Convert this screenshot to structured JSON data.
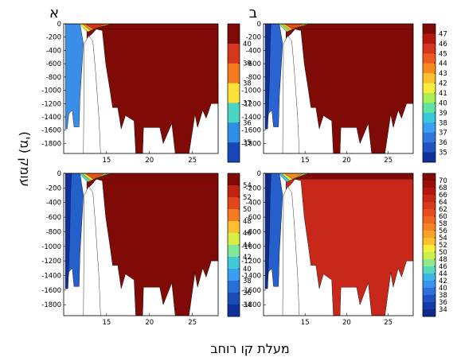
{
  "figure": {
    "xlabel": "מעלת קו רוחב",
    "ylabel": "עומק (מ')",
    "panel_labels": [
      "א",
      "ב"
    ]
  },
  "chart_data": [
    {
      "type": "heatmap",
      "panel_label": "א",
      "x_ticks": [
        15,
        20,
        25
      ],
      "xlim": [
        10,
        28
      ],
      "y_ticks": [
        0,
        -200,
        -400,
        -600,
        -800,
        -1000,
        -1200,
        -1400,
        -1600,
        -1800
      ],
      "ylim": [
        -1950,
        0
      ],
      "colorbar": {
        "ticks": [
          40,
          39,
          38,
          37,
          36,
          35
        ],
        "colors": [
          "#7f0a06",
          "#d6361b",
          "#f4791f",
          "#fbe236",
          "#49d5c4",
          "#2f8fe6",
          "#1747b6"
        ]
      }
    },
    {
      "type": "heatmap",
      "panel_label": "ב",
      "x_ticks": [
        15,
        20,
        25
      ],
      "xlim": [
        10,
        28
      ],
      "y_ticks": [
        0,
        -200,
        -400,
        -600,
        -800,
        -1000,
        -1200,
        -1400,
        -1600,
        -1800
      ],
      "ylim": [
        -1950,
        0
      ],
      "colorbar": {
        "ticks": [
          47,
          46,
          45,
          44,
          43,
          42,
          41,
          40,
          39,
          38,
          37,
          36,
          35
        ],
        "colors": [
          "#7f0a06",
          "#b4170e",
          "#d6361b",
          "#ef5a1f",
          "#f98a22",
          "#fcc02e",
          "#f6ef3a",
          "#a9ee55",
          "#5fe2a2",
          "#38c8d8",
          "#3a9ff0",
          "#2f76e0",
          "#1f52c2",
          "#10309a"
        ]
      }
    },
    {
      "type": "heatmap",
      "x_ticks": [
        15,
        20,
        25
      ],
      "xlim": [
        10,
        28
      ],
      "y_ticks": [
        0,
        -200,
        -400,
        -600,
        -800,
        -1000,
        -1200,
        -1400,
        -1600,
        -1800
      ],
      "ylim": [
        -1950,
        0
      ],
      "colorbar": {
        "ticks": [
          54,
          52,
          50,
          48,
          46,
          44,
          42,
          40,
          38,
          36,
          34
        ],
        "colors": [
          "#7f0a06",
          "#c0230f",
          "#e4461c",
          "#f57a22",
          "#fcc02e",
          "#d8f044",
          "#7ee79a",
          "#40cad8",
          "#3a9ff0",
          "#2a6ed8",
          "#1b4db8",
          "#10309a"
        ]
      }
    },
    {
      "type": "heatmap",
      "x_ticks": [
        15,
        20,
        25
      ],
      "xlim": [
        10,
        28
      ],
      "y_ticks": [
        0,
        -200,
        -400,
        -600,
        -800,
        -1000,
        -1200,
        -1400,
        -1600,
        -1800
      ],
      "ylim": [
        -1950,
        0
      ],
      "colorbar": {
        "ticks": [
          70,
          68,
          66,
          64,
          62,
          60,
          58,
          56,
          54,
          52,
          50,
          48,
          46,
          44,
          42,
          40,
          38,
          36,
          34
        ],
        "colors": [
          "#7f0a06",
          "#9c0f08",
          "#b4170e",
          "#c72a14",
          "#d63a18",
          "#e54d1c",
          "#f06620",
          "#f88423",
          "#fca328",
          "#fcc02e",
          "#f6ef3a",
          "#c9f04c",
          "#8fe88a",
          "#58d6c0",
          "#3ab5e6",
          "#3a92ee",
          "#2f70dc",
          "#2152c4",
          "#1539a8",
          "#0e2a8c"
        ]
      }
    }
  ]
}
